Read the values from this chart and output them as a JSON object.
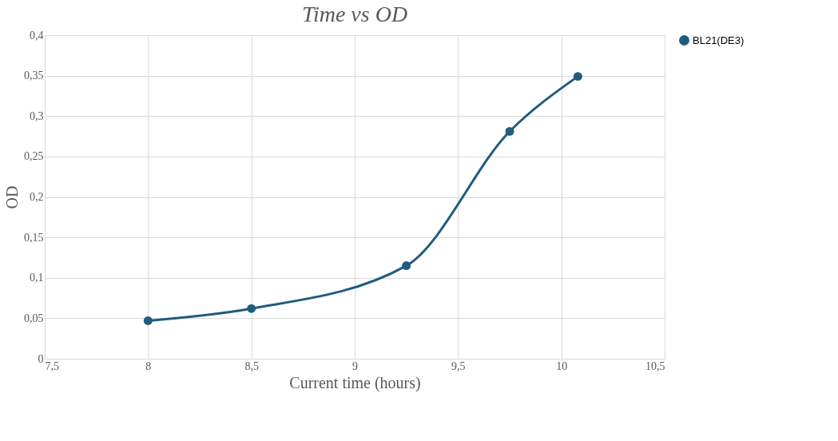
{
  "chart_data": {
    "type": "line",
    "title": "Time vs OD",
    "xlabel": "Current time (hours)",
    "ylabel": "OD",
    "x": [
      8,
      8.5,
      9.25,
      9.75,
      10.08
    ],
    "series": [
      {
        "name": "BL21(DE3)",
        "color": "#1f5c7e",
        "values": [
          0.047,
          0.062,
          0.115,
          0.281,
          0.349
        ]
      }
    ],
    "xlim": [
      7.5,
      10.5
    ],
    "xticks": [
      {
        "value": 7.5,
        "label": "7,5"
      },
      8,
      {
        "value": 8.5,
        "label": "8,5"
      },
      9,
      {
        "value": 9.5,
        "label": "9,5"
      },
      10,
      {
        "value": 10.5,
        "label": "10,5"
      }
    ],
    "ylim": [
      0,
      0.4
    ],
    "yticks": [
      0,
      {
        "value": 0.05,
        "label": "0,05"
      },
      {
        "value": 0.1,
        "label": "0,1"
      },
      {
        "value": 0.15,
        "label": "0,15"
      },
      {
        "value": 0.2,
        "label": "0,2"
      },
      {
        "value": 0.25,
        "label": "0,25"
      },
      {
        "value": 0.3,
        "label": "0,3"
      },
      {
        "value": 0.35,
        "label": "0,35"
      },
      {
        "value": 0.4,
        "label": "0,4"
      }
    ],
    "grid": true,
    "legend": "top right",
    "marker": "circle",
    "line_style": "solid"
  }
}
